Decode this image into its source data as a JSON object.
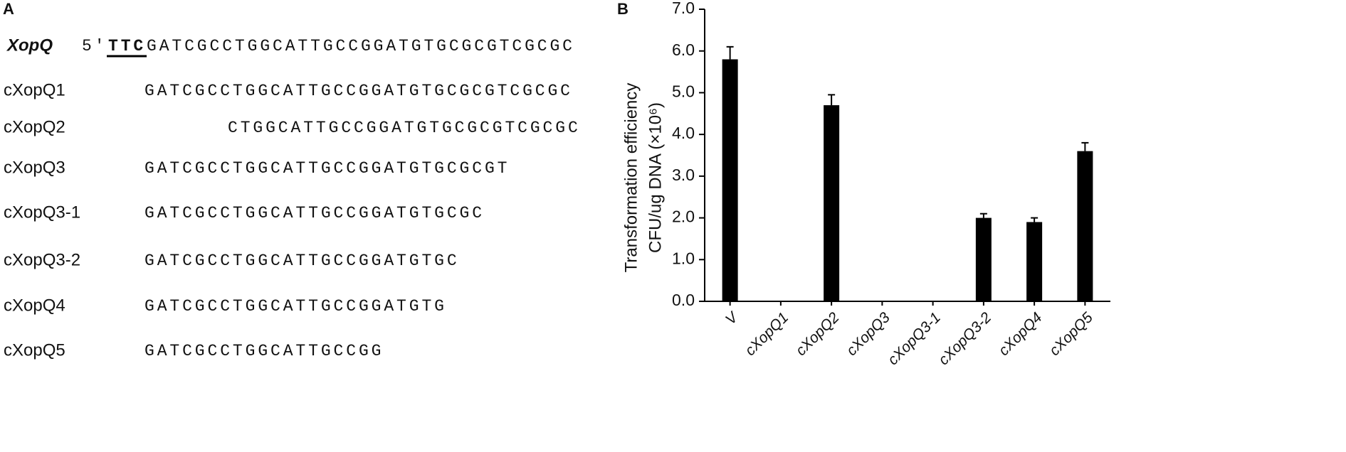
{
  "panel_a": {
    "label": "A",
    "reference": {
      "name": "XopQ",
      "prime": "5′",
      "highlight": "TTC",
      "sequence": "GATCGCCTGGCATTGCCGGATGTGCGCGTCGCGC"
    },
    "rows": [
      {
        "name": "cXopQ1",
        "sequence": "GATCGCCTGGCATTGCCGGATGTGCGCGTCGCGC"
      },
      {
        "name": "cXopQ2",
        "sequence": "CTGGCATTGCCGGATGTGCGCGTCGCGC"
      },
      {
        "name": "cXopQ3",
        "sequence": "GATCGCCTGGCATTGCCGGATGTGCGCGT"
      },
      {
        "name": "cXopQ3-1",
        "sequence": "GATCGCCTGGCATTGCCGGATGTGCGC"
      },
      {
        "name": "cXopQ3-2",
        "sequence": "GATCGCCTGGCATTGCCGGATGTGC"
      },
      {
        "name": "cXopQ4",
        "sequence": "GATCGCCTGGCATTGCCGGATGTG"
      },
      {
        "name": "cXopQ5",
        "sequence": "GATCGCCTGGCATTGCCGG"
      }
    ]
  },
  "chart_data": {
    "type": "bar",
    "panel_label": "B",
    "y_label": [
      "Transformation efficiency",
      "CFU/ug DNA (×10⁶)"
    ],
    "categories": [
      "V",
      "cXopQ1",
      "cXopQ2",
      "cXopQ3",
      "cXopQ3-1",
      "cXopQ3-2",
      "cXopQ4",
      "cXopQ5"
    ],
    "values": [
      5.8,
      0,
      4.7,
      0,
      0,
      2.0,
      1.9,
      3.6
    ],
    "errors": [
      0.3,
      0,
      0.25,
      0,
      0,
      0.1,
      0.1,
      0.2
    ],
    "color": "#000000",
    "ylim": [
      0,
      7
    ],
    "yticks": [
      {
        "value": 0,
        "label": "0.0"
      },
      {
        "value": 1,
        "label": "1.0"
      },
      {
        "value": 2,
        "label": "2.0"
      },
      {
        "value": 3,
        "label": "3.0"
      },
      {
        "value": 4,
        "label": "4.0"
      },
      {
        "value": 5,
        "label": "5.0"
      },
      {
        "value": 6,
        "label": "6.0"
      },
      {
        "value": 7,
        "label": "7.0"
      }
    ]
  }
}
